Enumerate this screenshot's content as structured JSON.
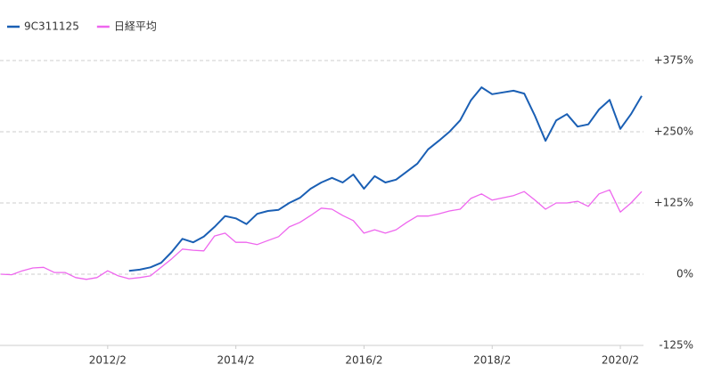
{
  "chart_data": {
    "type": "line",
    "categories": [
      null,
      null,
      null,
      null,
      null,
      null,
      null,
      null,
      null,
      null,
      "2012/2",
      null,
      null,
      null,
      null,
      null,
      null,
      null,
      null,
      null,
      null,
      null,
      "2014/2",
      null,
      null,
      null,
      null,
      null,
      null,
      null,
      null,
      null,
      null,
      null,
      "2016/2",
      null,
      null,
      null,
      null,
      null,
      null,
      null,
      null,
      null,
      null,
      null,
      "2018/2",
      null,
      null,
      null,
      null,
      null,
      null,
      null,
      null,
      null,
      null,
      null,
      "2020/2",
      null,
      null
    ],
    "series": [
      {
        "name": "9C311125",
        "color": "#1a5fb4",
        "values": [
          null,
          null,
          null,
          null,
          null,
          null,
          null,
          null,
          null,
          null,
          null,
          null,
          6,
          8,
          12,
          20,
          39,
          62,
          56,
          66,
          83,
          102,
          98,
          88,
          106,
          111,
          113,
          125,
          134,
          150,
          161,
          169,
          161,
          175,
          150,
          172,
          161,
          166,
          180,
          194,
          219,
          234,
          250,
          270,
          305,
          328,
          316,
          319,
          322,
          317,
          278,
          234,
          270,
          281,
          259,
          263,
          289,
          306,
          255,
          281,
          313
        ]
      },
      {
        "name": "日経平均",
        "color": "#ee66ee",
        "values": [
          0,
          -1,
          6,
          11,
          12,
          3,
          3,
          -6,
          -9,
          -6,
          6,
          -3,
          -8,
          -6,
          -3,
          12,
          27,
          44,
          42,
          41,
          67,
          72,
          56,
          56,
          52,
          59,
          66,
          83,
          91,
          103,
          116,
          114,
          103,
          94,
          72,
          78,
          72,
          78,
          91,
          102,
          102,
          106,
          111,
          114,
          133,
          141,
          130,
          134,
          138,
          145,
          130,
          114,
          125,
          125,
          128,
          119,
          141,
          148,
          109,
          125,
          145
        ]
      }
    ],
    "ylim": [
      -125,
      375
    ],
    "yticks": [
      {
        "value": -125,
        "label": "-125%"
      },
      {
        "value": 0,
        "label": "0%"
      },
      {
        "value": 125,
        "label": "+125%"
      },
      {
        "value": 250,
        "label": "+250%"
      },
      {
        "value": 375,
        "label": "+375%"
      }
    ],
    "grid": true,
    "legend": "top-left"
  }
}
